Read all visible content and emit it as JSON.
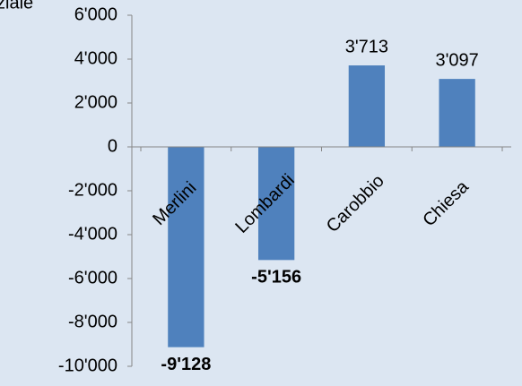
{
  "chart_data": {
    "type": "bar",
    "title": "ziale",
    "categories": [
      "Merlini",
      "Lombardi",
      "Carobbio",
      "Chiesa"
    ],
    "values": [
      -9128,
      -5156,
      3713,
      3097
    ],
    "value_labels": [
      "-9'128",
      "-5'156",
      "3'713",
      "3'097"
    ],
    "value_label_colors": [
      "#ff0000",
      "#ff0000",
      "#000000",
      "#000000"
    ],
    "color": "#4f81bd",
    "ylim": [
      -10000,
      6000
    ],
    "yticks": [
      {
        "value": -10000,
        "label": "-10'000"
      },
      {
        "value": -8000,
        "label": "-8'000"
      },
      {
        "value": -6000,
        "label": "-6'000"
      },
      {
        "value": -4000,
        "label": "-4'000"
      },
      {
        "value": -2000,
        "label": "-2'000"
      },
      0,
      {
        "value": 2000,
        "label": "2'000"
      },
      {
        "value": 4000,
        "label": "4'000"
      },
      {
        "value": 6000,
        "label": "6'000"
      }
    ],
    "grid": false
  }
}
